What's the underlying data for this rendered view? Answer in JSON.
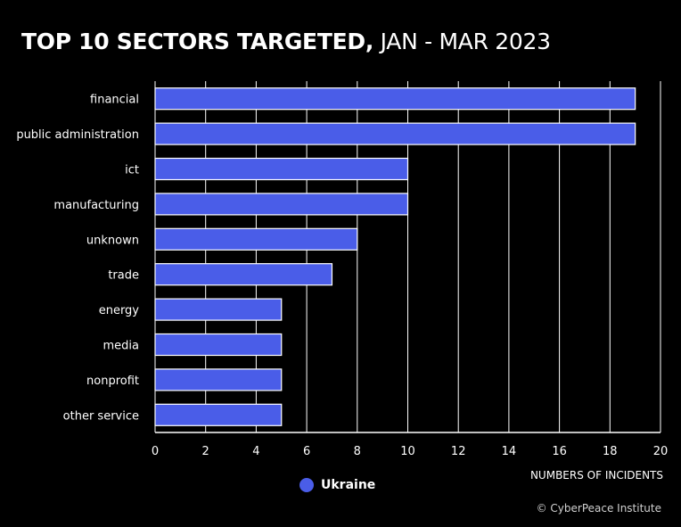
{
  "title_bold": "TOP 10 SECTORS TARGETED,",
  "title_light": " JAN - MAR 2023",
  "credit": "© CyberPeace Institute",
  "colors": {
    "bar": "#4a5de8",
    "background": "#000000",
    "grid": "#ffffff"
  },
  "chart_data": {
    "type": "bar",
    "orientation": "horizontal",
    "title": "TOP 10 SECTORS TARGETED, JAN - MAR 2023",
    "xlabel": "NUMBERS OF INCIDENTS",
    "ylabel": "",
    "xlim": [
      0,
      20
    ],
    "xticks": [
      "0",
      "2",
      "4",
      "6",
      "8",
      "10",
      "12",
      "14",
      "16",
      "18",
      "20"
    ],
    "grid": true,
    "legend_position": "bottom-center",
    "categories": [
      "financial",
      "public administration",
      "ict",
      "manufacturing",
      "unknown",
      "trade",
      "energy",
      "media",
      "nonprofit",
      "other service"
    ],
    "series": [
      {
        "name": "Ukraine",
        "values": [
          19,
          19,
          10,
          10,
          8,
          7,
          5,
          5,
          5,
          5
        ]
      }
    ]
  }
}
